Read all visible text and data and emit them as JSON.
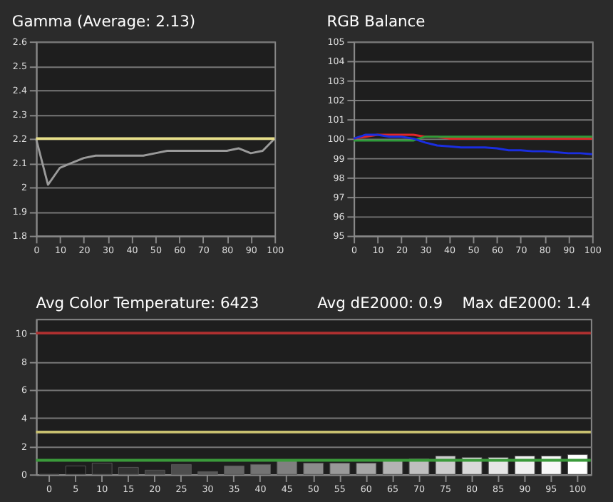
{
  "chart_data": [
    {
      "type": "line",
      "title": "Gamma (Average: 2.13)",
      "x": [
        0,
        5,
        10,
        15,
        20,
        25,
        30,
        35,
        40,
        45,
        50,
        55,
        60,
        65,
        70,
        75,
        80,
        85,
        90,
        95,
        100
      ],
      "series": [
        {
          "color": "#9a9a9a",
          "values": [
            2.2,
            2.01,
            2.08,
            2.1,
            2.12,
            2.13,
            2.13,
            2.13,
            2.13,
            2.13,
            2.14,
            2.15,
            2.15,
            2.15,
            2.15,
            2.15,
            2.15,
            2.16,
            2.14,
            2.15,
            2.2
          ]
        }
      ],
      "xlim": [
        0,
        100
      ],
      "xticks": [
        0,
        10,
        20,
        30,
        40,
        50,
        60,
        70,
        80,
        90,
        100
      ],
      "ylim": [
        1.8,
        2.6
      ],
      "yticks": [
        1.8,
        1.9,
        2,
        2.1,
        2.2,
        2.3,
        2.4,
        2.5,
        2.6
      ],
      "ref_lines": [
        {
          "axis": "y",
          "value": 2.2,
          "color": "#e8e08a"
        }
      ],
      "grid": "y",
      "legend": false,
      "marker": "none",
      "line_style": "solid"
    },
    {
      "type": "line",
      "title": "RGB Balance",
      "x": [
        0,
        5,
        10,
        15,
        20,
        25,
        30,
        35,
        40,
        45,
        50,
        55,
        60,
        65,
        70,
        75,
        80,
        85,
        90,
        95,
        100
      ],
      "series": [
        {
          "color": "#e0262a",
          "values": [
            100,
            100.1,
            100.2,
            100.2,
            100.2,
            100.2,
            100.1,
            100.1,
            100,
            100,
            100,
            100,
            100,
            100,
            100,
            100,
            100,
            100,
            100,
            100,
            100
          ]
        },
        {
          "color": "#2e9b3a",
          "values": [
            99.9,
            99.9,
            99.9,
            99.9,
            99.9,
            99.9,
            100.1,
            100.1,
            100.1,
            100.1,
            100.1,
            100.1,
            100.1,
            100.1,
            100.1,
            100.1,
            100.1,
            100.1,
            100.1,
            100.1,
            100.1
          ]
        },
        {
          "color": "#1a2ee0",
          "values": [
            100,
            100.2,
            100.2,
            100.1,
            100.1,
            100,
            99.8,
            99.65,
            99.6,
            99.55,
            99.55,
            99.55,
            99.5,
            99.4,
            99.4,
            99.35,
            99.35,
            99.3,
            99.25,
            99.25,
            99.2
          ]
        }
      ],
      "xlim": [
        0,
        100
      ],
      "xticks": [
        0,
        10,
        20,
        30,
        40,
        50,
        60,
        70,
        80,
        90,
        100
      ],
      "ylim": [
        95,
        105
      ],
      "yticks": [
        95,
        96,
        97,
        98,
        99,
        100,
        101,
        102,
        103,
        104,
        105
      ],
      "grid": "y",
      "legend": false,
      "marker": "none",
      "line_style": "solid"
    },
    {
      "type": "bar",
      "title": "Avg Color Temperature: 6423",
      "annotations": [
        "Avg dE2000: 0.9",
        "Max dE2000: 1.4"
      ],
      "categories": [
        "0",
        "5",
        "10",
        "15",
        "20",
        "25",
        "30",
        "35",
        "40",
        "45",
        "50",
        "55",
        "60",
        "65",
        "70",
        "75",
        "80",
        "85",
        "90",
        "95",
        "100"
      ],
      "values": [
        0,
        0.6,
        0.8,
        0.5,
        0.3,
        0.7,
        0.2,
        0.6,
        0.7,
        1.0,
        0.8,
        0.8,
        0.8,
        1.0,
        1.1,
        1.3,
        1.2,
        1.2,
        1.3,
        1.3,
        1.4
      ],
      "colors": [
        "#000000",
        "#1a1a1a",
        "#262626",
        "#333333",
        "#404040",
        "#4d4d4d",
        "#595959",
        "#666666",
        "#737373",
        "#808080",
        "#8c8c8c",
        "#999999",
        "#a6a6a6",
        "#b3b3b3",
        "#bfbfbf",
        "#cccccc",
        "#d9d9d9",
        "#e6e6e6",
        "#f0f0f0",
        "#f7f7f7",
        "#ffffff"
      ],
      "ylim": [
        0,
        11
      ],
      "yticks": [
        0,
        2,
        4,
        6,
        8,
        10
      ],
      "ref_lines": [
        {
          "axis": "y",
          "value": 10,
          "color": "#b03030"
        },
        {
          "axis": "y",
          "value": 3,
          "color": "#c8c070"
        },
        {
          "axis": "y",
          "value": 1,
          "color": "#3a9a3a"
        }
      ],
      "grid": "y"
    }
  ]
}
